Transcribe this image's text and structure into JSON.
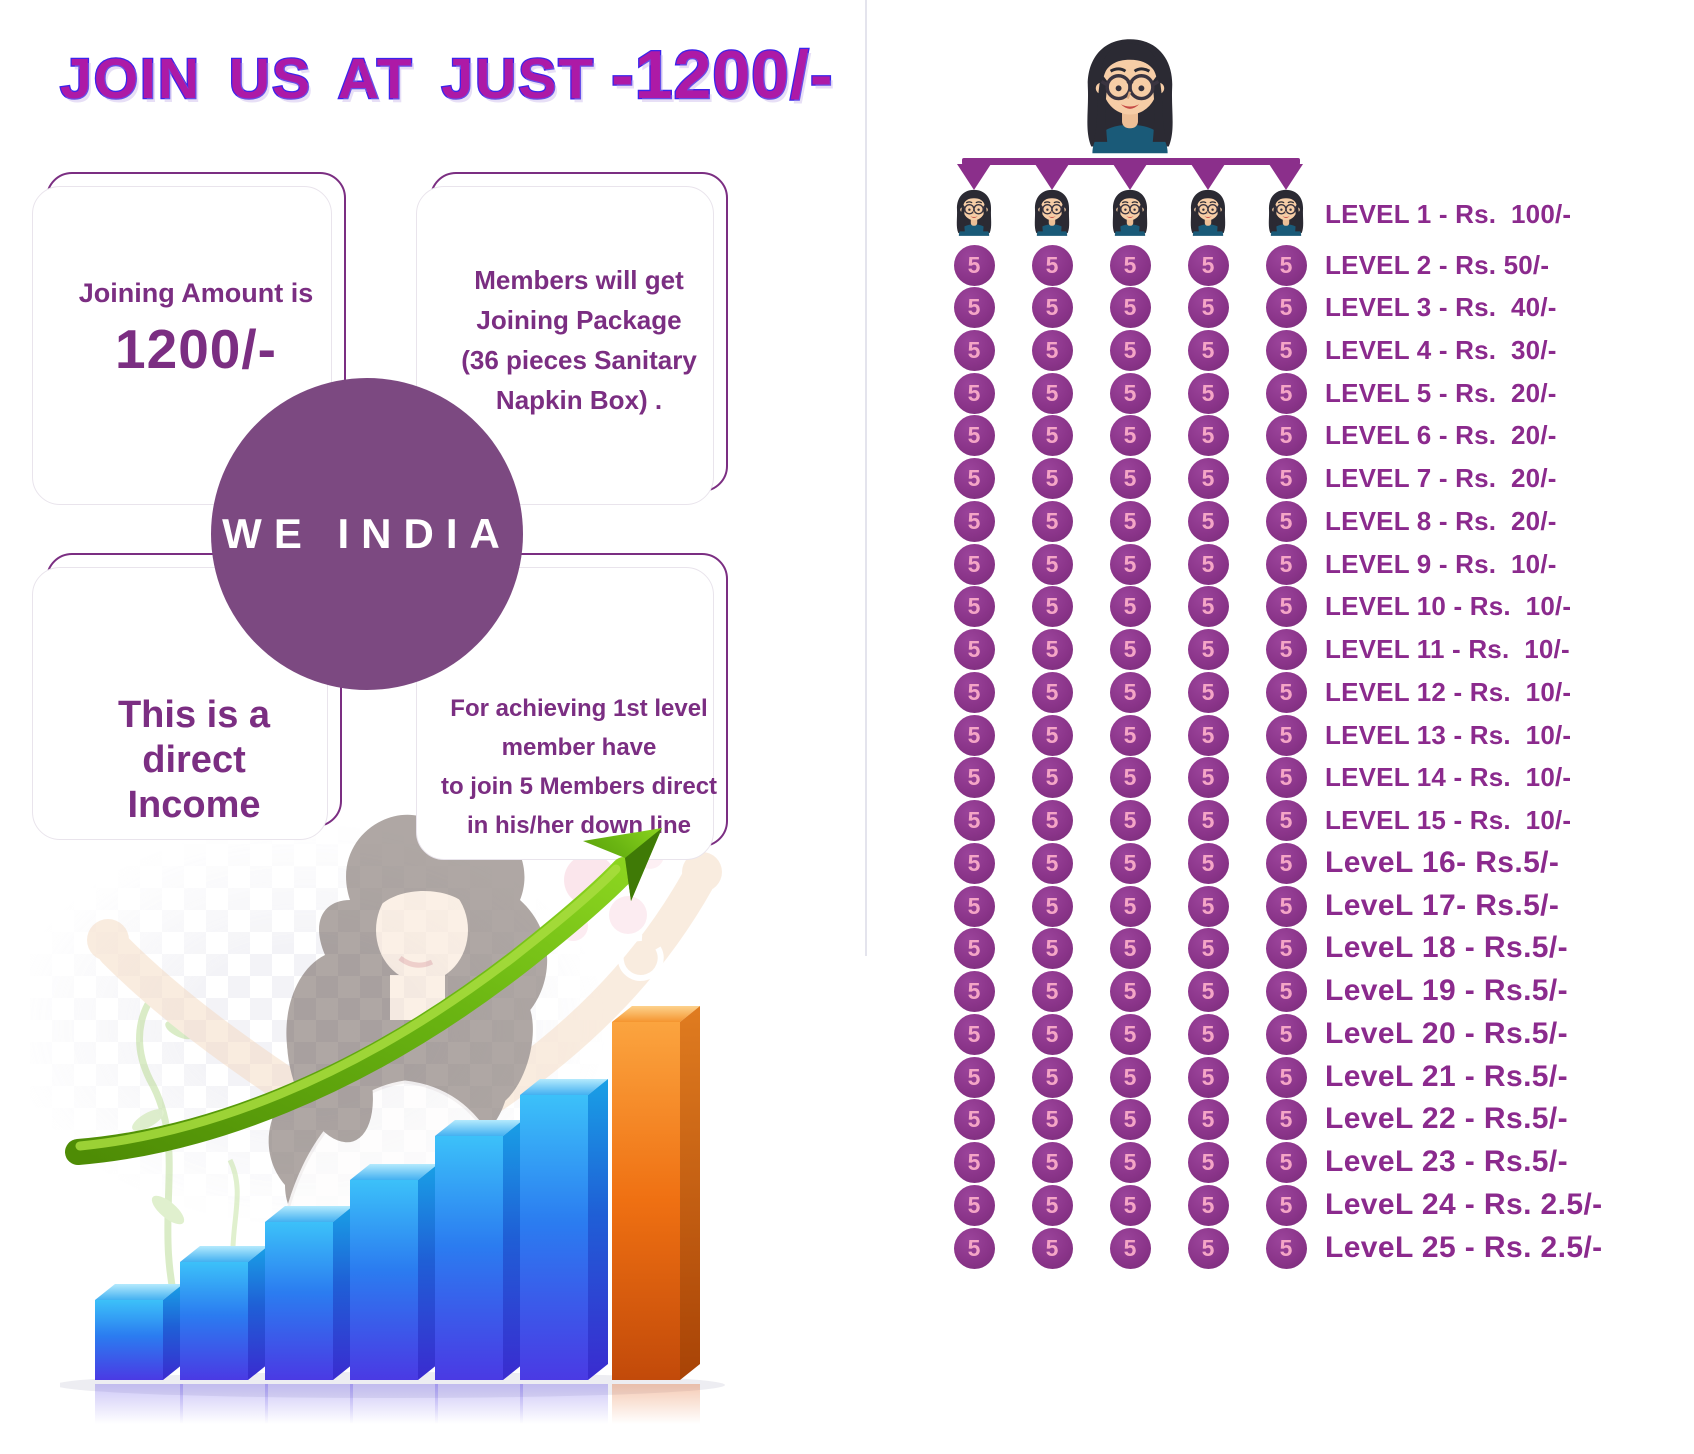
{
  "title": {
    "main": "JOIN US AT JUST",
    "amount": "-1200/-"
  },
  "brand": {
    "circle_label": "WE INDIA"
  },
  "cards": {
    "joining": {
      "line1": "Joining Amount is",
      "line2": "1200/-"
    },
    "package": {
      "lines": [
        "Members will get",
        "Joining Package",
        "(36 pieces Sanitary",
        "Napkin Box) ."
      ]
    },
    "direct": {
      "lines": [
        "This is a",
        "direct",
        "Income"
      ]
    },
    "achieve": {
      "lines": [
        "For achieving 1st level",
        "member have",
        "to join 5 Members direct",
        "in his/her down line"
      ]
    }
  },
  "tree": {
    "columns": 5,
    "marker": "5",
    "levels": [
      {
        "level": 1,
        "label": "LEVEL 1 - Rs.  100/-"
      },
      {
        "level": 2,
        "label": "LEVEL 2 - Rs. 50/-"
      },
      {
        "level": 3,
        "label": "LEVEL 3 - Rs.  40/-"
      },
      {
        "level": 4,
        "label": "LEVEL 4 - Rs.  30/-"
      },
      {
        "level": 5,
        "label": "LEVEL 5 - Rs.  20/-"
      },
      {
        "level": 6,
        "label": "LEVEL 6 - Rs.  20/-"
      },
      {
        "level": 7,
        "label": "LEVEL 7 - Rs.  20/-"
      },
      {
        "level": 8,
        "label": "LEVEL 8 - Rs.  20/-"
      },
      {
        "level": 9,
        "label": "LEVEL 9 - Rs.  10/-"
      },
      {
        "level": 10,
        "label": "LEVEL 10 - Rs.  10/-"
      },
      {
        "level": 11,
        "label": "LEVEL 11 - Rs.  10/-"
      },
      {
        "level": 12,
        "label": "LEVEL 12 - Rs.  10/-"
      },
      {
        "level": 13,
        "label": "LEVEL 13 - Rs.  10/-"
      },
      {
        "level": 14,
        "label": "LEVEL 14 - Rs.  10/-"
      },
      {
        "level": 15,
        "label": "LEVEL 15 - Rs.  10/-"
      },
      {
        "level": 16,
        "label": "LeveL 16- Rs.5/-"
      },
      {
        "level": 17,
        "label": "LeveL 17- Rs.5/-"
      },
      {
        "level": 18,
        "label": "LeveL 18 - Rs.5/-"
      },
      {
        "level": 19,
        "label": "LeveL 19 - Rs.5/-"
      },
      {
        "level": 20,
        "label": "LeveL 20 - Rs.5/-"
      },
      {
        "level": 21,
        "label": "LeveL 21 - Rs.5/-"
      },
      {
        "level": 22,
        "label": "LeveL 22 - Rs.5/-"
      },
      {
        "level": 23,
        "label": "LeveL 23 - Rs.5/-"
      },
      {
        "level": 24,
        "label": "LeveL 24 - Rs. 2.5/-"
      },
      {
        "level": 25,
        "label": "LeveL 25 - Rs. 2.5/-"
      }
    ]
  },
  "colors": {
    "accent": "#8b2f8b",
    "title_fill": "#ad1aa6",
    "title_stroke": "#3b23ec",
    "card_border": "#7b2e82",
    "card_text": "#7b2e82",
    "brand_circle": "#7c4981",
    "coin_fill": "#8a3489",
    "coin_text": "#f4a5c6",
    "label_text": "#8b2a8d",
    "bar_blue": "#2b7cf0",
    "bar_orange": "#f07012",
    "arrow_green": "#6cb512",
    "avatar_shirt": "#1a5a78",
    "avatar_hair": "#2b2a33"
  }
}
